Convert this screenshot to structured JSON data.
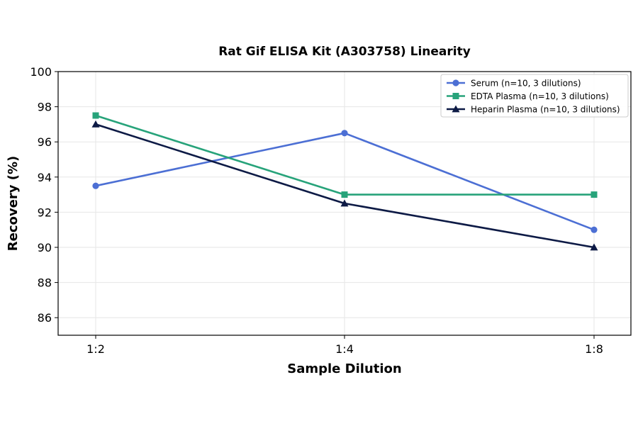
{
  "chart_data": {
    "type": "line",
    "title": "Rat Gif ELISA Kit (A303758) Linearity",
    "xlabel": "Sample Dilution",
    "ylabel": "Recovery (%)",
    "categories": [
      "1:2",
      "1:4",
      "1:8"
    ],
    "ylim": [
      85,
      100
    ],
    "yticks": [
      86,
      88,
      90,
      92,
      94,
      96,
      98,
      100
    ],
    "grid": true,
    "legend_position": "top-right",
    "series": [
      {
        "name": "Serum (n=10, 3 dilutions)",
        "values": [
          93.5,
          96.5,
          91.0
        ],
        "color": "#4c6fd4",
        "marker": "circle"
      },
      {
        "name": "EDTA Plasma (n=10, 3 dilutions)",
        "values": [
          97.5,
          93.0,
          93.0
        ],
        "color": "#27a37a",
        "marker": "square"
      },
      {
        "name": "Heparin Plasma (n=10, 3 dilutions)",
        "values": [
          97.0,
          92.5,
          90.0
        ],
        "color": "#0d1a45",
        "marker": "triangle"
      }
    ]
  }
}
